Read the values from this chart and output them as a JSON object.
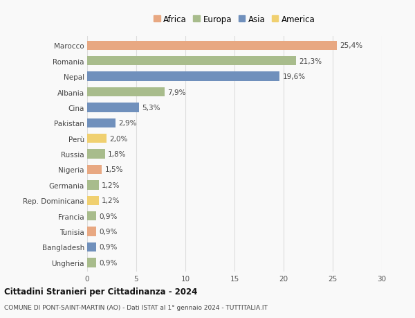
{
  "countries": [
    "Marocco",
    "Romania",
    "Nepal",
    "Albania",
    "Cina",
    "Pakistan",
    "Perù",
    "Russia",
    "Nigeria",
    "Germania",
    "Rep. Dominicana",
    "Francia",
    "Tunisia",
    "Bangladesh",
    "Ungheria"
  ],
  "values": [
    25.4,
    21.3,
    19.6,
    7.9,
    5.3,
    2.9,
    2.0,
    1.8,
    1.5,
    1.2,
    1.2,
    0.9,
    0.9,
    0.9,
    0.9
  ],
  "labels": [
    "25,4%",
    "21,3%",
    "19,6%",
    "7,9%",
    "5,3%",
    "2,9%",
    "2,0%",
    "1,8%",
    "1,5%",
    "1,2%",
    "1,2%",
    "0,9%",
    "0,9%",
    "0,9%",
    "0,9%"
  ],
  "continents": [
    "Africa",
    "Europa",
    "Asia",
    "Europa",
    "Asia",
    "Asia",
    "America",
    "Europa",
    "Africa",
    "Europa",
    "America",
    "Europa",
    "Africa",
    "Asia",
    "Europa"
  ],
  "colors": {
    "Africa": "#E8A882",
    "Europa": "#A8BC8C",
    "Asia": "#7090BC",
    "America": "#F0D070"
  },
  "legend_order": [
    "Africa",
    "Europa",
    "Asia",
    "America"
  ],
  "title_bold": "Cittadini Stranieri per Cittadinanza - 2024",
  "subtitle": "COMUNE DI PONT-SAINT-MARTIN (AO) - Dati ISTAT al 1° gennaio 2024 - TUTTITALIA.IT",
  "xlim": [
    0,
    30
  ],
  "xticks": [
    0,
    5,
    10,
    15,
    20,
    25,
    30
  ],
  "bg_color": "#f9f9f9",
  "grid_color": "#dddddd",
  "bar_height": 0.6,
  "label_fontsize": 7.5,
  "ytick_fontsize": 7.5,
  "xtick_fontsize": 7.5
}
